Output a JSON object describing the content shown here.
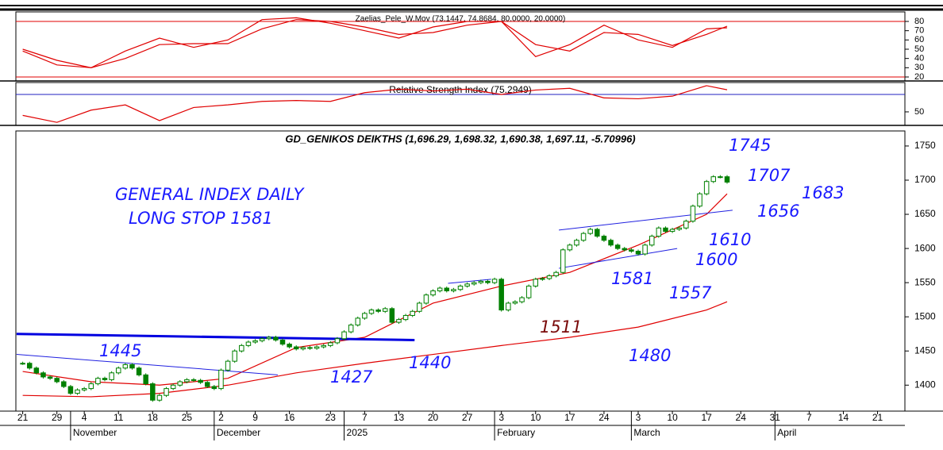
{
  "chart_data": [
    {
      "type": "line",
      "title": "Zaelias_Pele_W.Mov (73.1447, 74.8684, 80.0000, 20.0000)",
      "ylim": [
        15.7,
        90.3
      ],
      "yticks": [
        80,
        70,
        60,
        50,
        40,
        30,
        20
      ],
      "levels": [
        80,
        20
      ],
      "level_color": "#e00000",
      "series": [
        {
          "color": "#e00000",
          "x": [
            0,
            5,
            10,
            15,
            20,
            25,
            30,
            35,
            40,
            45,
            50,
            55,
            60,
            65,
            70,
            75,
            80,
            85,
            90,
            95,
            100,
            103
          ],
          "values": [
            48,
            33,
            30,
            48,
            62,
            52,
            60,
            82,
            84,
            78,
            70,
            62,
            74,
            80,
            80,
            42,
            55,
            76,
            60,
            52,
            72,
            73.1447
          ]
        },
        {
          "color": "#e00000",
          "x": [
            0,
            5,
            10,
            15,
            20,
            25,
            30,
            35,
            40,
            45,
            50,
            55,
            60,
            65,
            70,
            75,
            80,
            85,
            90,
            95,
            100,
            103
          ],
          "values": [
            50,
            38,
            30,
            40,
            55,
            56,
            56,
            72,
            82,
            80,
            74,
            66,
            68,
            76,
            80,
            55,
            48,
            68,
            66,
            54,
            66,
            74.8684
          ]
        }
      ]
    },
    {
      "type": "line",
      "title": "Relative Strength Index (75.2949)",
      "ylim": [
        34.5,
        83.6
      ],
      "yticks": [
        50
      ],
      "levels": [
        70
      ],
      "level_color": "#2020c0",
      "series": [
        {
          "color": "#e00000",
          "x": [
            0,
            5,
            10,
            15,
            20,
            25,
            30,
            35,
            40,
            45,
            50,
            55,
            60,
            65,
            70,
            75,
            80,
            85,
            90,
            95,
            100,
            103
          ],
          "values": [
            46,
            38,
            52,
            58,
            40,
            55,
            58,
            62,
            63,
            62,
            72,
            76,
            74,
            76,
            70,
            75,
            77,
            66,
            65,
            68,
            80,
            75.2949
          ]
        }
      ]
    },
    {
      "type": "candlestick",
      "title": "GD_GENIKOS DEIKTHS (1,696.29, 1,698.32, 1,690.38, 1,697.11, -5.70996)",
      "ylim": [
        1362,
        1772
      ],
      "yticks": [
        1750,
        1700,
        1650,
        1600,
        1550,
        1500,
        1450,
        1400
      ],
      "xlim": [
        -1,
        129
      ],
      "xticks": [
        {
          "value": 0,
          "label": "21"
        },
        {
          "value": 5,
          "label": "29"
        },
        {
          "value": 9,
          "label": "4"
        },
        {
          "value": 14,
          "label": "11"
        },
        {
          "value": 19,
          "label": "18"
        },
        {
          "value": 24,
          "label": "25"
        },
        {
          "value": 29,
          "label": "2"
        },
        {
          "value": 34,
          "label": "9"
        },
        {
          "value": 39,
          "label": "16"
        },
        {
          "value": 45,
          "label": "23"
        },
        {
          "value": 50,
          "label": "7"
        },
        {
          "value": 55,
          "label": "13"
        },
        {
          "value": 60,
          "label": "20"
        },
        {
          "value": 65,
          "label": "27"
        },
        {
          "value": 70,
          "label": "3"
        },
        {
          "value": 75,
          "label": "10"
        },
        {
          "value": 80,
          "label": "17"
        },
        {
          "value": 85,
          "label": "24"
        },
        {
          "value": 90,
          "label": "3"
        },
        {
          "value": 95,
          "label": "10"
        },
        {
          "value": 100,
          "label": "17"
        },
        {
          "value": 105,
          "label": "24"
        },
        {
          "value": 110,
          "label": "31"
        },
        {
          "value": 115,
          "label": "7"
        },
        {
          "value": 120,
          "label": "14"
        },
        {
          "value": 125,
          "label": "21"
        }
      ],
      "month_labels": [
        {
          "value": 7,
          "label": "November"
        },
        {
          "value": 28,
          "label": "December"
        },
        {
          "value": 47,
          "label": "2025"
        },
        {
          "value": 69,
          "label": "February"
        },
        {
          "value": 89,
          "label": "March"
        },
        {
          "value": 110,
          "label": "April"
        }
      ],
      "color": "#008000",
      "closes": [
        1432,
        1425,
        1418,
        1412,
        1410,
        1405,
        1398,
        1388,
        1393,
        1395,
        1402,
        1410,
        1408,
        1418,
        1425,
        1430,
        1425,
        1415,
        1402,
        1378,
        1385,
        1395,
        1400,
        1405,
        1408,
        1407,
        1404,
        1398,
        1395,
        1422,
        1435,
        1450,
        1458,
        1463,
        1465,
        1468,
        1470,
        1466,
        1460,
        1456,
        1453,
        1455,
        1454,
        1456,
        1458,
        1462,
        1468,
        1478,
        1488,
        1498,
        1505,
        1510,
        1508,
        1512,
        1492,
        1496,
        1502,
        1508,
        1520,
        1532,
        1538,
        1542,
        1538,
        1540,
        1545,
        1548,
        1550,
        1552,
        1550,
        1555,
        1510,
        1520,
        1522,
        1528,
        1545,
        1555,
        1556,
        1560,
        1565,
        1598,
        1605,
        1612,
        1622,
        1628,
        1618,
        1612,
        1605,
        1600,
        1598,
        1596,
        1592,
        1605,
        1618,
        1630,
        1625,
        1628,
        1630,
        1640,
        1662,
        1680,
        1698,
        1705,
        1705,
        1697.11
      ],
      "lines": [
        {
          "color": "#e00000",
          "x": [
            0,
            10,
            20,
            30,
            40,
            50,
            60,
            70,
            80,
            90,
            100,
            103
          ],
          "values": [
            1420,
            1405,
            1400,
            1410,
            1455,
            1470,
            1520,
            1545,
            1565,
            1605,
            1650,
            1680
          ]
        },
        {
          "color": "#e00000",
          "x": [
            0,
            10,
            20,
            30,
            40,
            50,
            60,
            70,
            80,
            90,
            100,
            103
          ],
          "values": [
            1385,
            1383,
            1388,
            1400,
            1418,
            1432,
            1445,
            1458,
            1470,
            1485,
            1510,
            1522
          ]
        }
      ],
      "trendlines": [
        {
          "color": "#0000e0",
          "x": [
            -0.9,
            57.3
          ],
          "values": [
            1475,
            1466
          ]
        },
        {
          "color": "#2020e0",
          "x": [
            -0.9,
            37.3
          ],
          "values": [
            1445,
            1415
          ]
        },
        {
          "color": "#2020e0",
          "x": [
            62.2,
            68.5
          ],
          "values": [
            1549,
            1555
          ]
        },
        {
          "color": "#2020e0",
          "x": [
            78.4,
            103.8
          ],
          "values": [
            1627,
            1656
          ]
        },
        {
          "color": "#2020e0",
          "x": [
            78.4,
            95.7
          ],
          "values": [
            1571,
            1600
          ]
        }
      ],
      "annotations": [
        {
          "text": "GENERAL INDEX DAILY",
          "color": "#1a1aff"
        },
        {
          "text": "LONG STOP 1581",
          "color": "#1a1aff"
        },
        {
          "text": "1745",
          "color": "#1a1aff"
        },
        {
          "text": "1707",
          "color": "#1a1aff"
        },
        {
          "text": "1683",
          "color": "#1a1aff"
        },
        {
          "text": "1656",
          "color": "#1a1aff"
        },
        {
          "text": "1610",
          "color": "#1a1aff"
        },
        {
          "text": "1600",
          "color": "#1a1aff"
        },
        {
          "text": "1581",
          "color": "#1a1aff"
        },
        {
          "text": "1557",
          "color": "#1a1aff"
        },
        {
          "text": "1511",
          "color": "#7a0a0a"
        },
        {
          "text": "1480",
          "color": "#1a1aff"
        },
        {
          "text": "1440",
          "color": "#1a1aff"
        },
        {
          "text": "1427",
          "color": "#1a1aff"
        },
        {
          "text": "1445",
          "color": "#1a1aff"
        }
      ]
    }
  ]
}
